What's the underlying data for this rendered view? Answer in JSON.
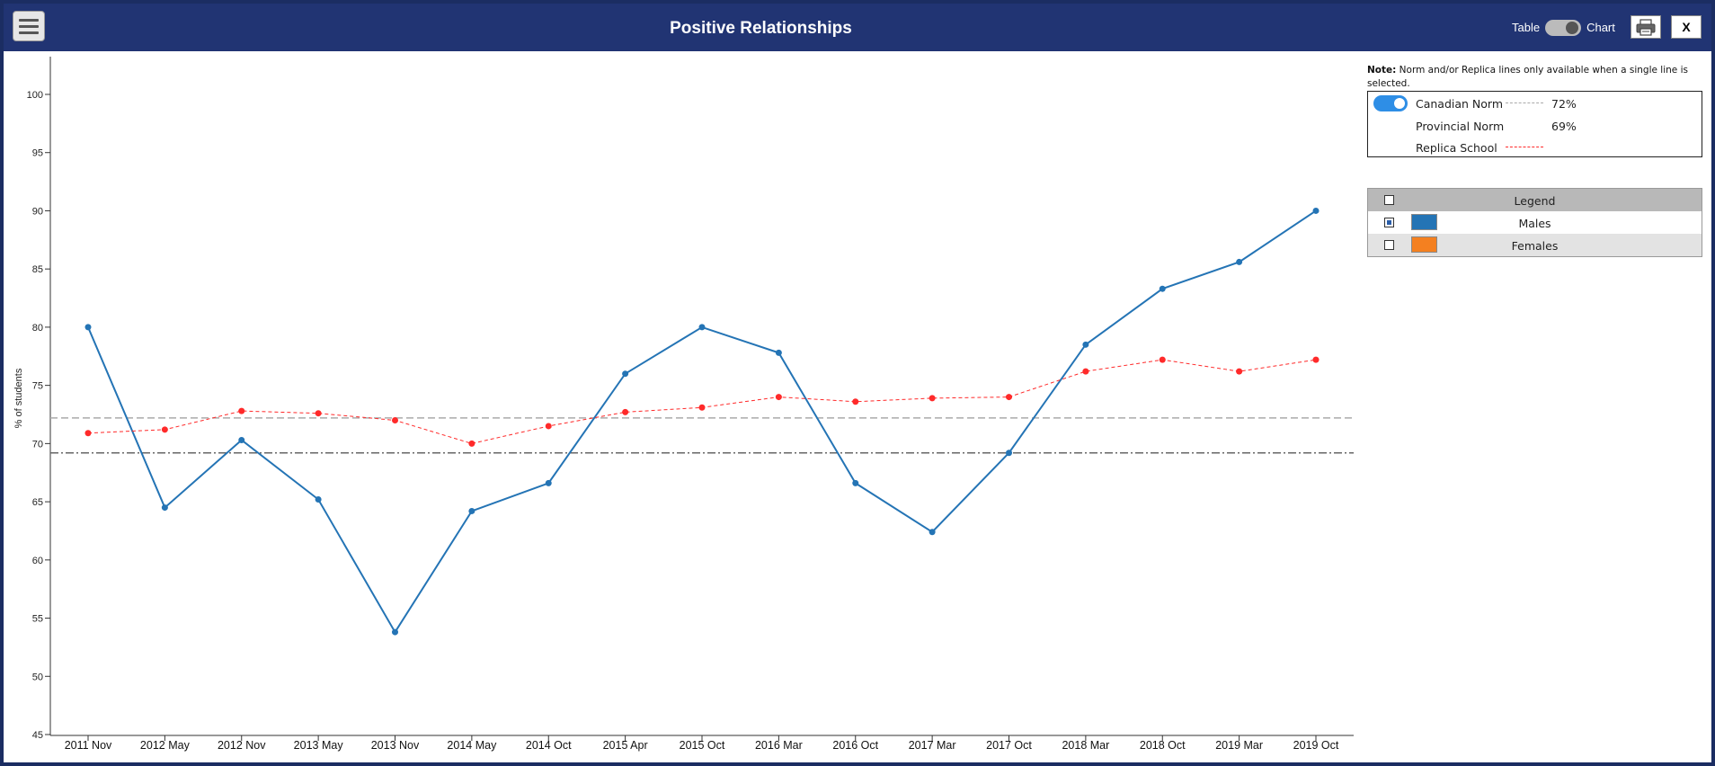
{
  "header": {
    "title": "Positive Relationships",
    "toggle_left": "Table",
    "toggle_right": "Chart",
    "close_label": "X"
  },
  "note": {
    "bold": "Note:",
    "text": " Norm and/or Replica lines only available when a single line is selected."
  },
  "norms": [
    {
      "label": "Canadian Norm",
      "value": "72%",
      "enabled": true,
      "color": "#aaaaaa",
      "style": "dashed"
    },
    {
      "label": "Provincial Norm",
      "value": "69%",
      "enabled": false,
      "color": "#666666",
      "style": "dashdot"
    },
    {
      "label": "Replica School",
      "value": "",
      "enabled": false,
      "color": "#ff2a2a",
      "style": "dashed"
    }
  ],
  "legend": {
    "title": "Legend",
    "items": [
      {
        "label": "Males",
        "color": "#2474b5",
        "checked": true
      },
      {
        "label": "Females",
        "color": "#f48020",
        "checked": false
      }
    ]
  },
  "chart_data": {
    "type": "line",
    "ylabel": "% of students",
    "xlabel": "",
    "ylim": [
      45,
      100
    ],
    "yticks": [
      45,
      50,
      55,
      60,
      65,
      70,
      75,
      80,
      85,
      90,
      95,
      100
    ],
    "categories": [
      "2011 Nov",
      "2012 May",
      "2012 Nov",
      "2013 May",
      "2013 Nov",
      "2014 May",
      "2014 Oct",
      "2015 Apr",
      "2015 Oct",
      "2016 Mar",
      "2016 Oct",
      "2017 Mar",
      "2017 Oct",
      "2018 Mar",
      "2018 Oct",
      "2019 Mar",
      "2019 Oct"
    ],
    "series": [
      {
        "name": "Males",
        "color": "#2474b5",
        "values": [
          80,
          64.5,
          70.3,
          65.2,
          53.8,
          64.2,
          66.6,
          76,
          80,
          77.8,
          66.6,
          62.4,
          69.2,
          78.5,
          83.3,
          85.6,
          90
        ]
      },
      {
        "name": "Replica School",
        "color": "#ff2a2a",
        "dashed": true,
        "values": [
          70.9,
          71.2,
          72.8,
          72.6,
          72,
          70,
          71.5,
          72.7,
          73.1,
          74,
          73.6,
          73.9,
          74,
          76.2,
          77.2,
          76.2,
          77.2
        ]
      }
    ],
    "reference_lines": [
      {
        "name": "Canadian Norm",
        "value": 72.2,
        "color": "#aaaaaa",
        "style": "dashed"
      },
      {
        "name": "Provincial Norm",
        "value": 69.2,
        "color": "#666666",
        "style": "dashdot"
      }
    ],
    "grid": false
  }
}
